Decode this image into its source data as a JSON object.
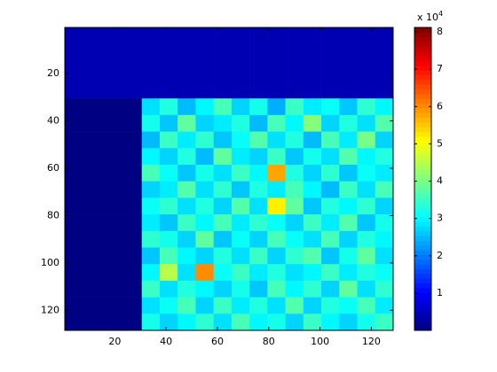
{
  "chart_data": {
    "type": "heatmap",
    "xlim": [
      0.5,
      128.5
    ],
    "ylim": [
      128.5,
      0.5
    ],
    "xticks": [
      20,
      40,
      60,
      80,
      100,
      120
    ],
    "yticks": [
      20,
      40,
      60,
      80,
      100,
      120
    ],
    "x_edges": [
      0.5,
      30.5,
      37.5,
      44.5,
      51.5,
      58.5,
      65.5,
      72.5,
      79.5,
      86.5,
      93.5,
      100.5,
      107.5,
      114.5,
      121.5,
      128.5
    ],
    "y_edges": [
      0.5,
      30.5,
      37.5,
      44.5,
      51.5,
      58.5,
      65.5,
      72.5,
      79.5,
      86.5,
      93.5,
      100.5,
      107.5,
      114.5,
      121.5,
      128.5
    ],
    "z": [
      [
        4000,
        4000,
        4000,
        4000,
        4000,
        4000,
        4000,
        4000,
        4000,
        4000,
        4000,
        4000,
        4000,
        4000,
        4000
      ],
      [
        300,
        28000,
        33000,
        25000,
        30000,
        36000,
        27000,
        32000,
        24000,
        35000,
        29000,
        31000,
        26000,
        34000,
        30000
      ],
      [
        300,
        32000,
        26000,
        38000,
        27000,
        29000,
        33000,
        25000,
        36000,
        30000,
        41000,
        27000,
        33000,
        28000,
        37000
      ],
      [
        300,
        25000,
        35000,
        29000,
        34000,
        26000,
        31000,
        37000,
        28000,
        33000,
        25000,
        36000,
        29000,
        40000,
        27000
      ],
      [
        300,
        30000,
        27000,
        33000,
        25000,
        38000,
        29000,
        27000,
        35000,
        26000,
        32000,
        28000,
        37000,
        30000,
        33000
      ],
      [
        300,
        36000,
        31000,
        26000,
        32000,
        28000,
        35000,
        30000,
        58000,
        33000,
        27000,
        34000,
        26000,
        31000,
        29000
      ],
      [
        300,
        27000,
        29000,
        37000,
        28000,
        34000,
        26000,
        33000,
        29000,
        36000,
        30000,
        25000,
        35000,
        28000,
        36000
      ],
      [
        300,
        31000,
        34000,
        28000,
        33000,
        27000,
        37000,
        28000,
        52000,
        38000,
        26000,
        33000,
        30000,
        34000,
        27000
      ],
      [
        300,
        29000,
        26000,
        35000,
        30000,
        36000,
        29000,
        34000,
        31000,
        27000,
        35000,
        29000,
        37000,
        26000,
        32000
      ],
      [
        300,
        34000,
        32000,
        27000,
        38000,
        26000,
        31000,
        27000,
        36000,
        31000,
        28000,
        36000,
        27000,
        33000,
        30000
      ],
      [
        300,
        26000,
        36000,
        30000,
        27000,
        33000,
        28000,
        35000,
        27000,
        34000,
        37000,
        26000,
        32000,
        38000,
        28000
      ],
      [
        300,
        30000,
        45000,
        28000,
        60000,
        31000,
        35000,
        29000,
        33000,
        28000,
        30000,
        35000,
        29000,
        33000,
        31000
      ],
      [
        300,
        35000,
        28000,
        33000,
        30000,
        27000,
        32000,
        26000,
        36000,
        30000,
        34000,
        27000,
        38000,
        28000,
        34000
      ],
      [
        300,
        28000,
        31000,
        36000,
        27000,
        35000,
        29000,
        33000,
        28000,
        37000,
        27000,
        33000,
        31000,
        36000,
        29000
      ],
      [
        300,
        32000,
        27000,
        30000,
        34000,
        28000,
        36000,
        30000,
        32000,
        27000,
        35000,
        30000,
        27000,
        32000,
        35000
      ]
    ],
    "clim": [
      0,
      81200
    ],
    "colorbar_ticks": [
      {
        "value": 10000,
        "label": "1"
      },
      {
        "value": 20000,
        "label": "2"
      },
      {
        "value": 30000,
        "label": "3"
      },
      {
        "value": 40000,
        "label": "4"
      },
      {
        "value": 50000,
        "label": "5"
      },
      {
        "value": 60000,
        "label": "6"
      },
      {
        "value": 70000,
        "label": "7"
      },
      {
        "value": 80000,
        "label": "8"
      }
    ],
    "colorbar_multiplier": {
      "base": "x 10",
      "exponent": "4"
    },
    "colormap": "jet"
  }
}
